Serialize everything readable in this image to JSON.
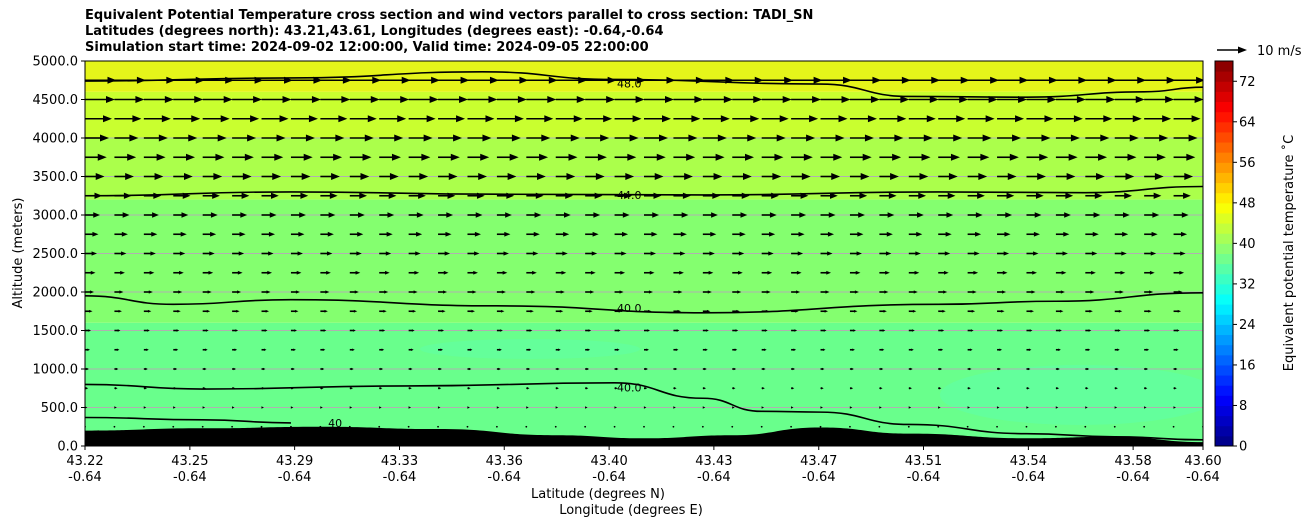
{
  "title_lines": [
    "Equivalent Potential Temperature cross section and wind vectors parallel to cross section: TADI_SN",
    "Latitudes (degrees north): 43.21,43.61, Longitudes (degrees east): -0.64,-0.64",
    "Simulation start time: 2024-09-02 12:00:00, Valid time: 2024-09-05 22:00:00"
  ],
  "quiver_key_label": "10 m/s",
  "chart_data": {
    "type": "contourf",
    "ylabel": "Altitude (meters)",
    "xlabel_line1": "Latitude (degrees N)",
    "xlabel_line2": "Longitude (degrees E)",
    "xlim": [
      43.22,
      43.6
    ],
    "ylim": [
      0,
      5000
    ],
    "x_ticks": [
      {
        "lat": "43.22",
        "lon": "-0.64",
        "pos": 0.0
      },
      {
        "lat": "43.25",
        "lon": "-0.64",
        "pos": 0.0938
      },
      {
        "lat": "43.29",
        "lon": "-0.64",
        "pos": 0.1875
      },
      {
        "lat": "43.33",
        "lon": "-0.64",
        "pos": 0.2813
      },
      {
        "lat": "43.36",
        "lon": "-0.64",
        "pos": 0.375
      },
      {
        "lat": "43.40",
        "lon": "-0.64",
        "pos": 0.4688
      },
      {
        "lat": "43.43",
        "lon": "-0.64",
        "pos": 0.5625
      },
      {
        "lat": "43.47",
        "lon": "-0.64",
        "pos": 0.6563
      },
      {
        "lat": "43.51",
        "lon": "-0.64",
        "pos": 0.75
      },
      {
        "lat": "43.54",
        "lon": "-0.64",
        "pos": 0.8438
      },
      {
        "lat": "43.58",
        "lon": "-0.64",
        "pos": 0.9375
      },
      {
        "lat": "43.60",
        "lon": "-0.64",
        "pos": 1.0
      }
    ],
    "y_ticks": [
      {
        "value": 0,
        "label": "0.0"
      },
      {
        "value": 500,
        "label": "500.0"
      },
      {
        "value": 1000,
        "label": "1000.0"
      },
      {
        "value": 1500,
        "label": "1500.0"
      },
      {
        "value": 2000,
        "label": "2000.0"
      },
      {
        "value": 2500,
        "label": "2500.0"
      },
      {
        "value": 3000,
        "label": "3000.0"
      },
      {
        "value": 3500,
        "label": "3500.0"
      },
      {
        "value": 4000,
        "label": "4000.0"
      },
      {
        "value": 4500,
        "label": "4500.0"
      },
      {
        "value": 5000,
        "label": "5000.0"
      }
    ],
    "grid": "horizontal",
    "colorbar": {
      "label": "Equivalent potential temperature ˚C",
      "min": 0,
      "max": 76,
      "step": 2,
      "tick_values": [
        0,
        8,
        16,
        24,
        32,
        40,
        48,
        56,
        64,
        72
      ],
      "tick_labels": [
        "0",
        "8",
        "16",
        "24",
        "32",
        "40",
        "48",
        "56",
        "64",
        "72"
      ],
      "colormap": "jet"
    },
    "field_bands": [
      {
        "altitude_range": [
          0,
          1600
        ],
        "theta_e": 38,
        "color": "#69ff8c"
      },
      {
        "altitude_range": [
          1600,
          3200
        ],
        "theta_e": 41,
        "color": "#84ff6f"
      },
      {
        "altitude_range": [
          3200,
          4000
        ],
        "theta_e": 43,
        "color": "#abff4b"
      },
      {
        "altitude_range": [
          4000,
          4600
        ],
        "theta_e": 45,
        "color": "#c9ff2f"
      },
      {
        "altitude_range": [
          4600,
          5000
        ],
        "theta_e": 47,
        "color": "#e5f51a"
      }
    ],
    "contours": [
      {
        "level_label": "48.0",
        "points": [
          [
            43.22,
            4740
          ],
          [
            43.29,
            4780
          ],
          [
            43.355,
            4860
          ],
          [
            43.4,
            4760
          ],
          [
            43.47,
            4700
          ],
          [
            43.5,
            4540
          ],
          [
            43.54,
            4530
          ],
          [
            43.58,
            4600
          ],
          [
            43.6,
            4660
          ]
        ],
        "label_at": [
          43.405,
          4710
        ]
      },
      {
        "level_label": "44.0",
        "points": [
          [
            43.22,
            3250
          ],
          [
            43.29,
            3300
          ],
          [
            43.36,
            3270
          ],
          [
            43.43,
            3260
          ],
          [
            43.51,
            3300
          ],
          [
            43.56,
            3290
          ],
          [
            43.6,
            3370
          ]
        ],
        "label_at": [
          43.405,
          3260
        ]
      },
      {
        "level_label": "40.0",
        "points": [
          [
            43.22,
            1950
          ],
          [
            43.25,
            1840
          ],
          [
            43.29,
            1900
          ],
          [
            43.36,
            1820
          ],
          [
            43.43,
            1730
          ],
          [
            43.51,
            1840
          ],
          [
            43.55,
            1880
          ],
          [
            43.6,
            1990
          ]
        ],
        "label_at": [
          43.405,
          1790
        ]
      },
      {
        "level_label": "40.0",
        "points": [
          [
            43.22,
            800
          ],
          [
            43.26,
            740
          ],
          [
            43.33,
            780
          ],
          [
            43.4,
            820
          ],
          [
            43.43,
            620
          ],
          [
            43.45,
            450
          ],
          [
            43.47,
            440
          ],
          [
            43.5,
            280
          ],
          [
            43.54,
            160
          ],
          [
            43.57,
            120
          ],
          [
            43.6,
            80
          ]
        ],
        "label_at": [
          43.405,
          760
        ]
      },
      {
        "level_label": "40",
        "points": [
          [
            43.22,
            370
          ],
          [
            43.26,
            340
          ],
          [
            43.29,
            300
          ]
        ],
        "label_at": [
          43.305,
          300
        ]
      }
    ],
    "terrain_top_m": [
      [
        43.22,
        200
      ],
      [
        43.26,
        230
      ],
      [
        43.3,
        250
      ],
      [
        43.34,
        220
      ],
      [
        43.38,
        140
      ],
      [
        43.41,
        100
      ],
      [
        43.44,
        140
      ],
      [
        43.47,
        240
      ],
      [
        43.5,
        160
      ],
      [
        43.54,
        100
      ],
      [
        43.57,
        120
      ],
      [
        43.6,
        50
      ]
    ],
    "wind_vectors": {
      "reference_speed_ms": 10,
      "direction": "along cross section, northward",
      "speed_by_altitude": [
        [
          0,
          0.3
        ],
        [
          500,
          0.8
        ],
        [
          1000,
          1.3
        ],
        [
          1500,
          2.0
        ],
        [
          2000,
          3.0
        ],
        [
          2500,
          4.0
        ],
        [
          3000,
          5.0
        ],
        [
          3500,
          6.5
        ],
        [
          4000,
          8.0
        ],
        [
          4500,
          10.0
        ],
        [
          5000,
          11.0
        ]
      ]
    }
  }
}
